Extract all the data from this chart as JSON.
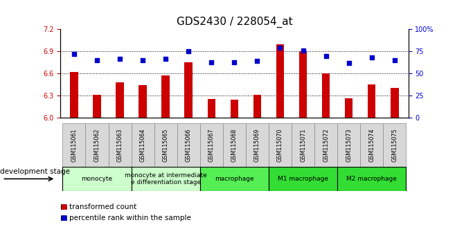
{
  "title": "GDS2430 / 228054_at",
  "samples": [
    "GSM115061",
    "GSM115062",
    "GSM115063",
    "GSM115064",
    "GSM115065",
    "GSM115066",
    "GSM115067",
    "GSM115068",
    "GSM115069",
    "GSM115070",
    "GSM115071",
    "GSM115072",
    "GSM115073",
    "GSM115074",
    "GSM115075"
  ],
  "bar_values": [
    6.62,
    6.31,
    6.48,
    6.44,
    6.57,
    6.75,
    6.25,
    6.24,
    6.31,
    7.0,
    6.9,
    6.6,
    6.26,
    6.45,
    6.4
  ],
  "dot_values": [
    72,
    65,
    67,
    65,
    67,
    75,
    63,
    63,
    64,
    79,
    76,
    70,
    62,
    68,
    65
  ],
  "ylim_left": [
    6.0,
    7.2
  ],
  "ylim_right": [
    0,
    100
  ],
  "yticks_left": [
    6.0,
    6.3,
    6.6,
    6.9,
    7.2
  ],
  "yticks_right": [
    0,
    25,
    50,
    75,
    100
  ],
  "hlines": [
    6.3,
    6.6,
    6.9
  ],
  "bar_color": "#cc0000",
  "dot_color": "#0000cc",
  "groups_info": [
    {
      "label": "monocyte",
      "xstart": -0.5,
      "xend": 2.5,
      "color": "#ccffcc"
    },
    {
      "label": "monocyte at intermediate\ne differentiation stage",
      "xstart": 2.5,
      "xend": 5.5,
      "color": "#ccffcc"
    },
    {
      "label": "macrophage",
      "xstart": 5.5,
      "xend": 8.5,
      "color": "#55ee55"
    },
    {
      "label": "M1 macrophage",
      "xstart": 8.5,
      "xend": 11.5,
      "color": "#33dd33"
    },
    {
      "label": "M2 macrophage",
      "xstart": 11.5,
      "xend": 14.5,
      "color": "#33dd33"
    }
  ],
  "dev_stage_label": "development stage",
  "legend_bar": "transformed count",
  "legend_dot": "percentile rank within the sample",
  "axis_color_left": "#cc0000",
  "axis_color_right": "#0000cc",
  "tick_bg_color": "#d8d8d8",
  "bar_width": 0.35,
  "fontsize_title": 11,
  "fontsize_ticks": 7,
  "fontsize_group": 7,
  "fontsize_legend": 7.5
}
